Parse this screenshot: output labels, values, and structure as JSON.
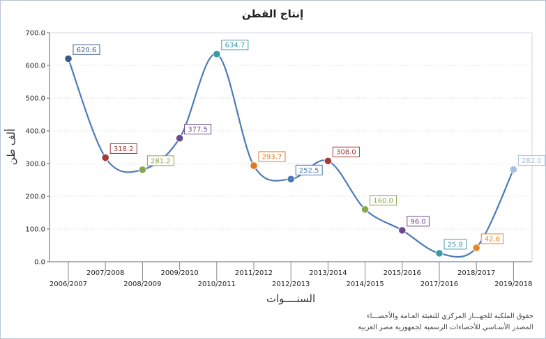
{
  "chart_data": {
    "type": "line",
    "title": "إنتاج القطن",
    "xlabel": "السنــــوات",
    "ylabel": "ألف طن",
    "ylim": [
      0,
      700
    ],
    "yticks": [
      "0.0",
      "100.0",
      "200.0",
      "300.0",
      "400.0",
      "500.0",
      "600.0",
      "700.0"
    ],
    "grid": "horizontal",
    "categories": [
      "2006/2007",
      "2007/2008",
      "2008/2009",
      "2009/2010",
      "2010/2011",
      "2011/2012",
      "2012/2013",
      "2013/2014",
      "2014/2015",
      "2015/2016",
      "2017/2016",
      "2018/2017",
      "2019/2018"
    ],
    "values": [
      620.6,
      318.2,
      281.2,
      377.5,
      634.7,
      293.7,
      252.5,
      308.0,
      160.0,
      96.0,
      25.8,
      42.6,
      282.0
    ],
    "value_labels": [
      "620.6",
      "318.2",
      "281.2",
      "377.5",
      "634.7",
      "293.7",
      "252.5",
      "308.0",
      "160.0",
      "96.0",
      "25.8",
      "42.6",
      "282.0"
    ],
    "line_color": "#4f7ab8",
    "point_colors": [
      "#3a5a8c",
      "#a33a3a",
      "#8aa84a",
      "#6b4a8e",
      "#3a9aa8",
      "#e07820",
      "#4a78b8",
      "#a33a3a",
      "#8aa84a",
      "#6b4a8e",
      "#3a9aa8",
      "#e8872a",
      "#a8c0e0"
    ]
  },
  "source_lines": [
    "حقوق الملكية للجهـــاز المركزي للتعبئة العـامة والأحصـــاء",
    "المصدر الأسـاسي للأحصاءات الرسمية لجمهورية مصر العربية"
  ]
}
